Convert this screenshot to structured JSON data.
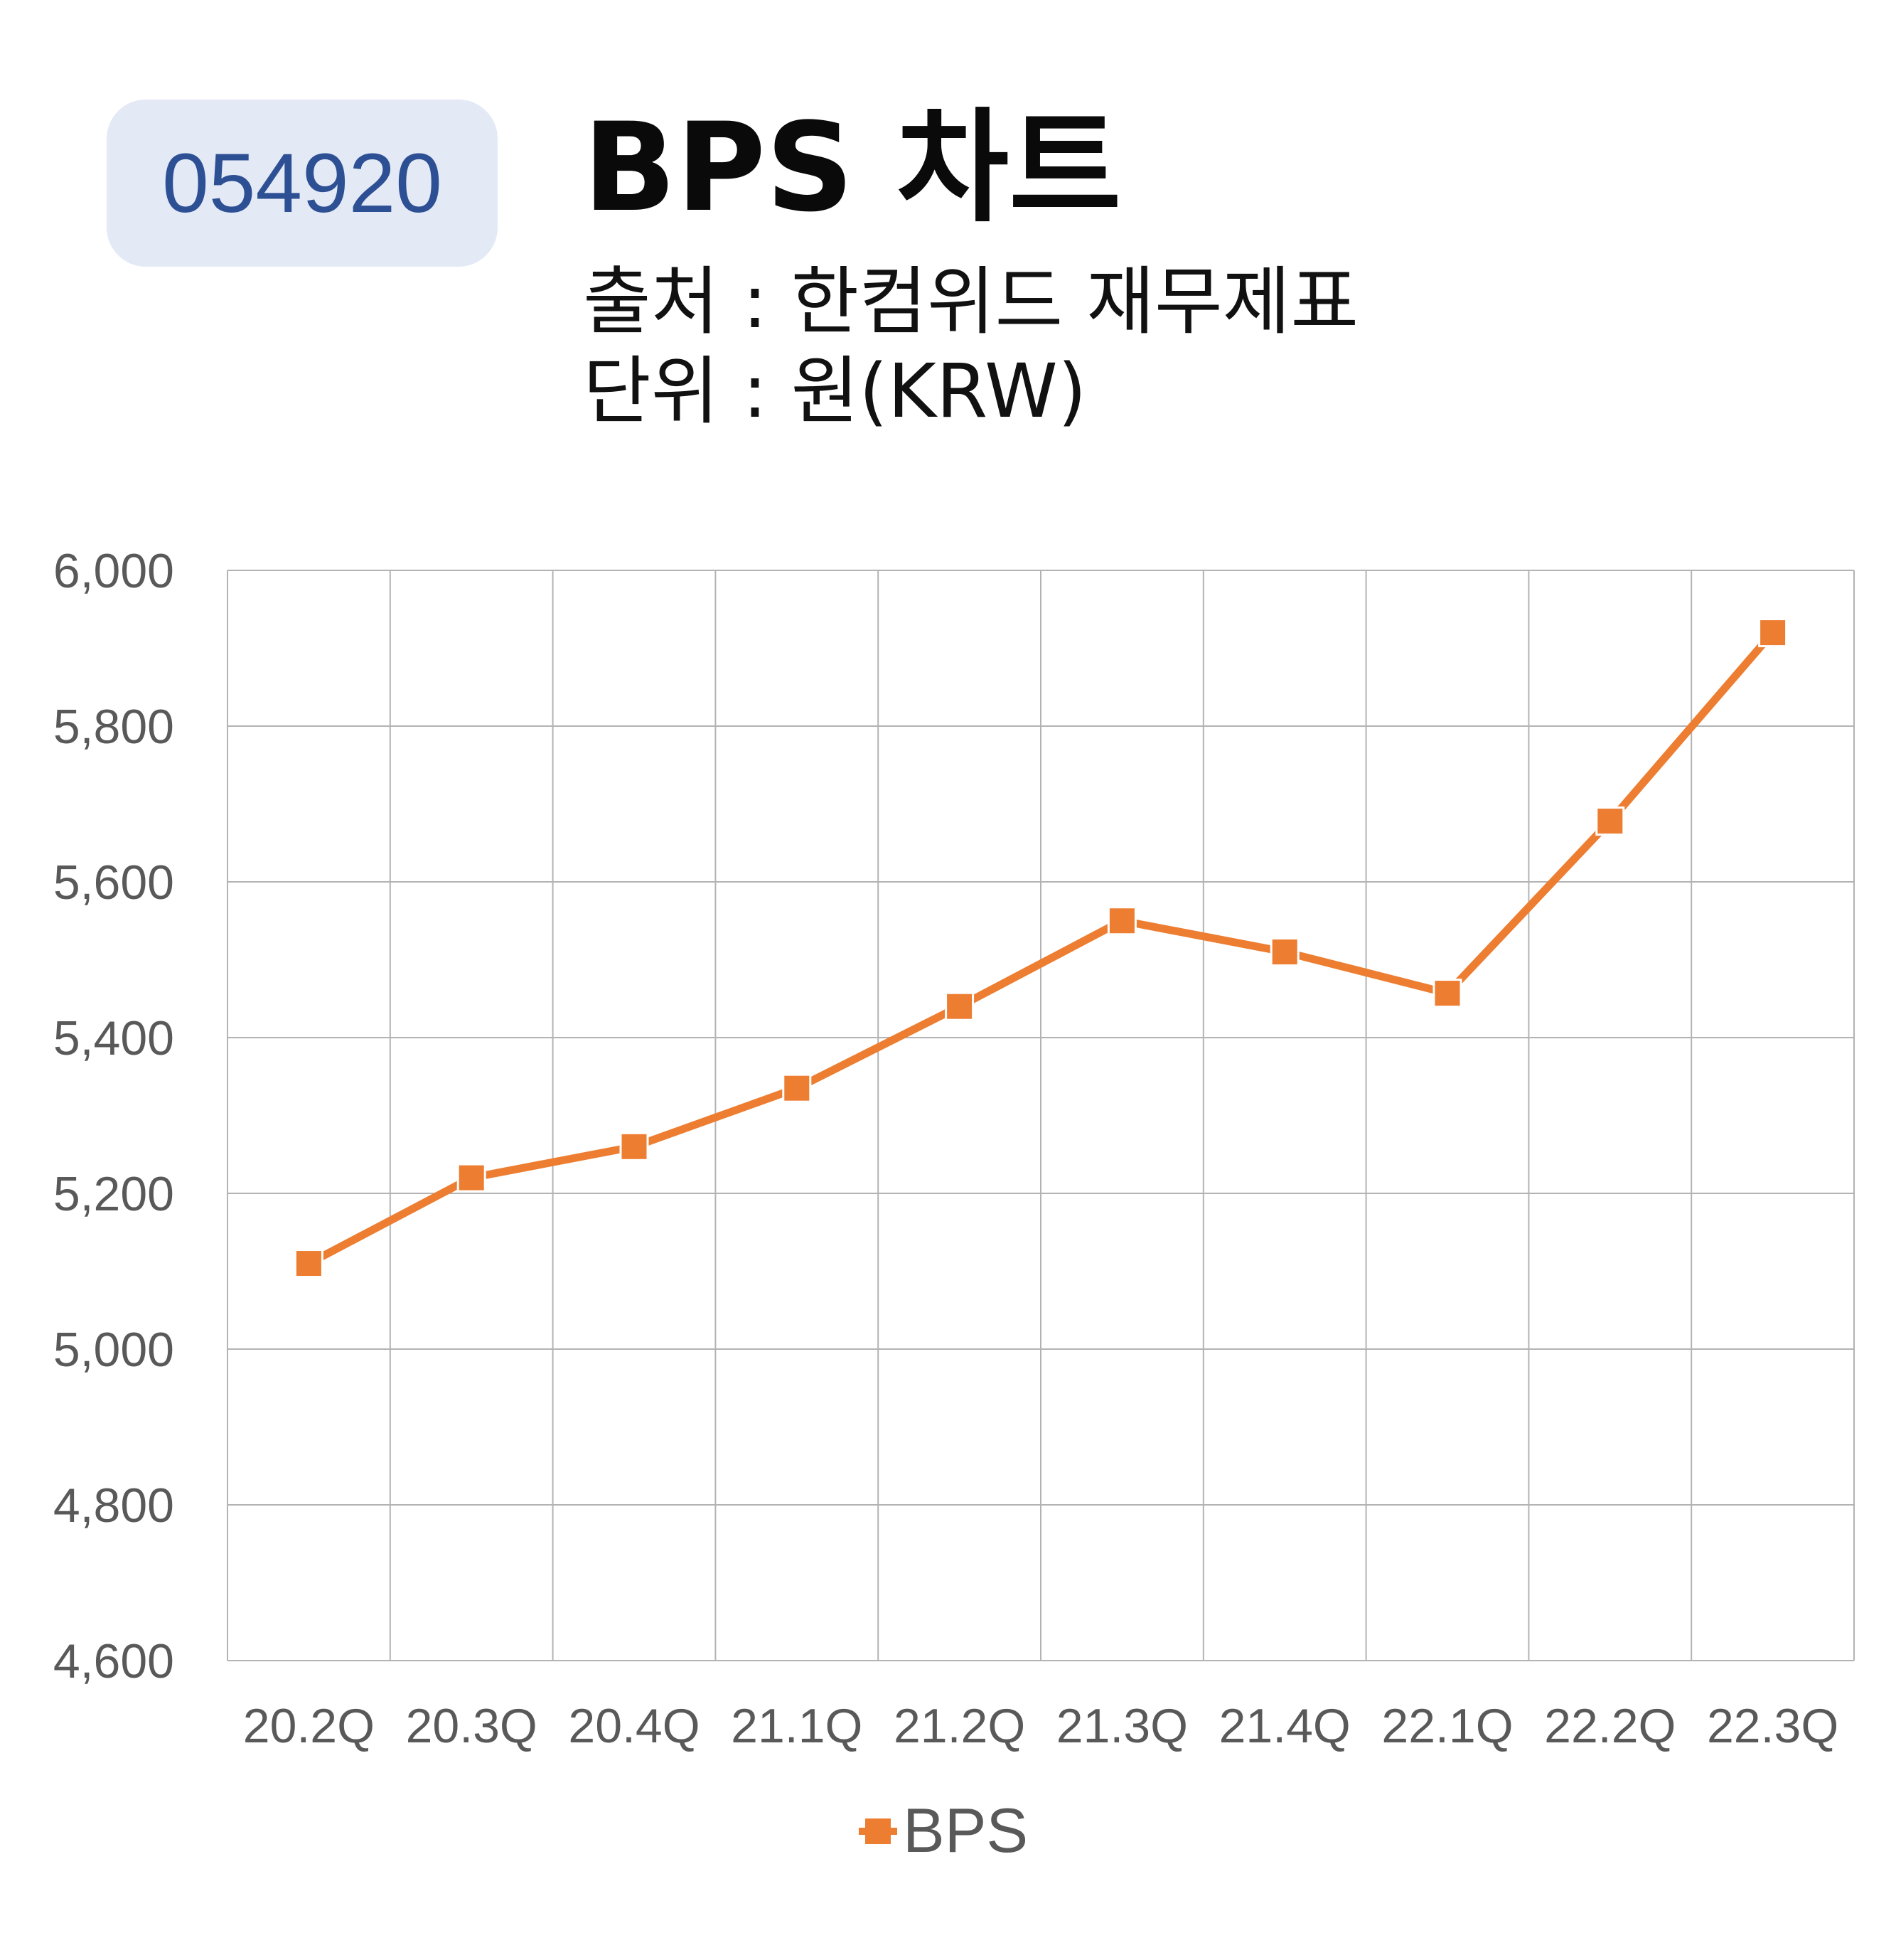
{
  "ticker": "054920",
  "title": "BPS 차트",
  "source": "출처 : 한컴위드 재무제표",
  "unit": "단위 : 원(KRW)",
  "colors": {
    "series": "#ed7d31",
    "grid": "#b3b3b3",
    "axis_text": "#595959",
    "badge_bg": "#e3e9f5",
    "badge_text": "#2d4f93"
  },
  "chart_data": {
    "type": "line",
    "categories": [
      "20.2Q",
      "20.3Q",
      "20.4Q",
      "21.1Q",
      "21.2Q",
      "21.3Q",
      "21.4Q",
      "22.1Q",
      "22.2Q",
      "22.3Q"
    ],
    "series": [
      {
        "name": "BPS",
        "values": [
          5110,
          5220,
          5260,
          5335,
          5440,
          5550,
          5510,
          5457,
          5678,
          5920
        ],
        "marker": "square"
      }
    ],
    "ylim": [
      4600,
      6000
    ],
    "yticks": [
      4600,
      4800,
      5000,
      5200,
      5400,
      5600,
      5800,
      6000
    ],
    "ytick_labels": [
      "4,600",
      "4,800",
      "5,000",
      "5,200",
      "5,400",
      "5,600",
      "5,800",
      "6,000"
    ],
    "grid": true,
    "legend": "bottom"
  }
}
